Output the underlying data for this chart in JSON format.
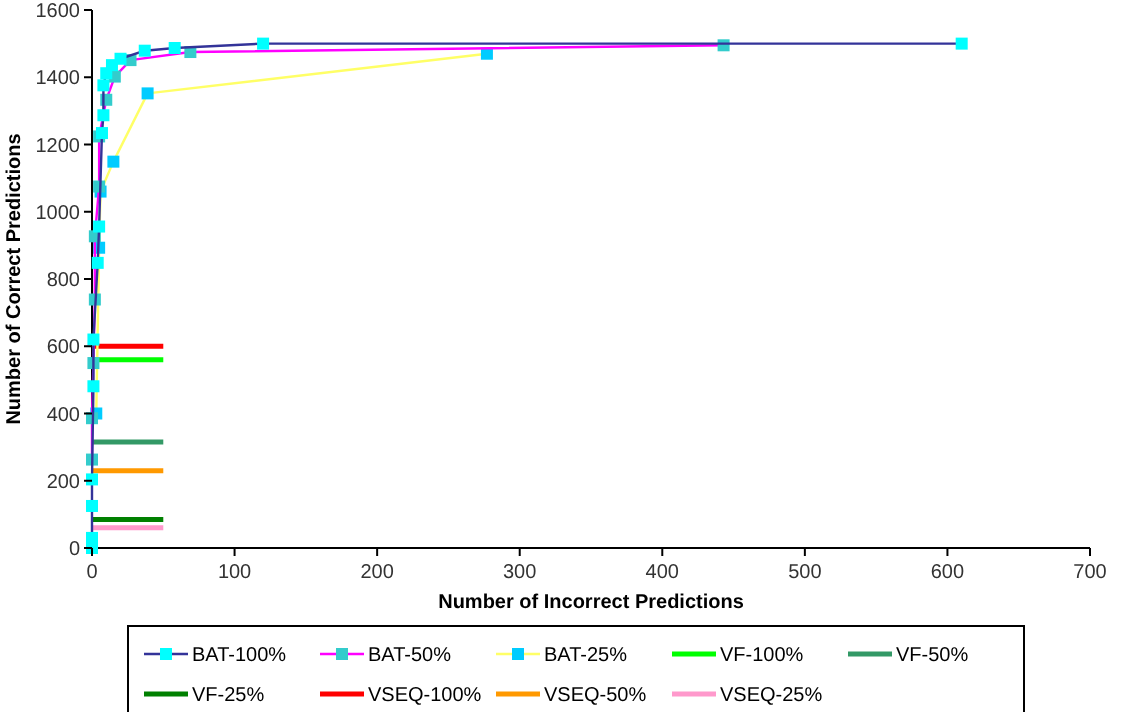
{
  "chart_data": {
    "type": "line",
    "xlabel": "Number of Incorrect Predictions",
    "ylabel": "Number of Correct Predictions",
    "xlim": [
      0,
      700
    ],
    "xticks": [
      0,
      100,
      200,
      300,
      400,
      500,
      600,
      700
    ],
    "ylim": [
      0,
      1600
    ],
    "yticks": [
      0,
      200,
      400,
      600,
      800,
      1000,
      1200,
      1400,
      1600
    ],
    "grid": false,
    "legend": "bottom",
    "marker": "square",
    "series": [
      {
        "name": "BAT-100%",
        "color": "#333399",
        "colors": [
          "#00ffff",
          "#00ffff",
          "#00ffff",
          "#00ffff",
          "#00ffff",
          "#00ffff",
          "#00ffff",
          "#00ffff",
          "#00ffff",
          "#00ffff",
          "#00ffff",
          "#00ffff",
          "#00ffff",
          "#00ffff",
          "#00ffff",
          "#00ffff",
          "#00ffff",
          "#00ffff"
        ],
        "x": [
          0,
          0,
          0,
          0,
          1,
          1,
          4,
          5,
          7,
          8,
          8,
          10,
          14,
          20,
          37,
          58,
          120,
          610
        ],
        "values": [
          0,
          30,
          125,
          204,
          481,
          620,
          848,
          956,
          1234,
          1287,
          1376,
          1412,
          1436,
          1455,
          1479,
          1487,
          1500,
          1500
        ]
      },
      {
        "name": "BAT-50%",
        "color": "#ff00ff",
        "colors": [
          "#33cccc",
          "#33cccc",
          "#33cccc",
          "#33cccc",
          "#33cccc",
          "#33cccc",
          "#33cccc",
          "#33cccc",
          "#33cccc",
          "#33cccc",
          "#33cccc",
          "#33cccc"
        ],
        "x": [
          0,
          0,
          1,
          2,
          2,
          5,
          5,
          10,
          16,
          27,
          69,
          443
        ],
        "values": [
          263,
          386,
          550,
          739,
          927,
          1075,
          1224,
          1333,
          1402,
          1451,
          1475,
          1495
        ]
      },
      {
        "name": "BAT-25%",
        "color": "#ffff66",
        "colors": [
          "#00ccff",
          "#00ccff",
          "#00ccff",
          "#00ccff",
          "#00ccff",
          "#00ccff"
        ],
        "x": [
          3,
          5,
          6,
          15,
          39,
          277
        ],
        "values": [
          400,
          893,
          1060,
          1149,
          1352,
          1470
        ]
      },
      {
        "name": "VF-100%",
        "color": "#00ff00",
        "marker": "none",
        "x": [
          0,
          50
        ],
        "values": [
          560,
          560
        ]
      },
      {
        "name": "VF-50%",
        "color": "#339966",
        "marker": "none",
        "x": [
          0,
          50
        ],
        "values": [
          315,
          315
        ]
      },
      {
        "name": "VF-25%",
        "color": "#008000",
        "marker": "none",
        "x": [
          0,
          50
        ],
        "values": [
          85,
          85
        ]
      },
      {
        "name": "VSEQ-100%",
        "color": "#ff0000",
        "marker": "none",
        "x": [
          0,
          50
        ],
        "values": [
          600,
          600
        ]
      },
      {
        "name": "VSEQ-50%",
        "color": "#ff9900",
        "marker": "none",
        "x": [
          0,
          50
        ],
        "values": [
          230,
          230
        ]
      },
      {
        "name": "VSEQ-25%",
        "color": "#ff99cc",
        "marker": "none",
        "x": [
          0,
          50
        ],
        "values": [
          60,
          60
        ]
      }
    ]
  }
}
